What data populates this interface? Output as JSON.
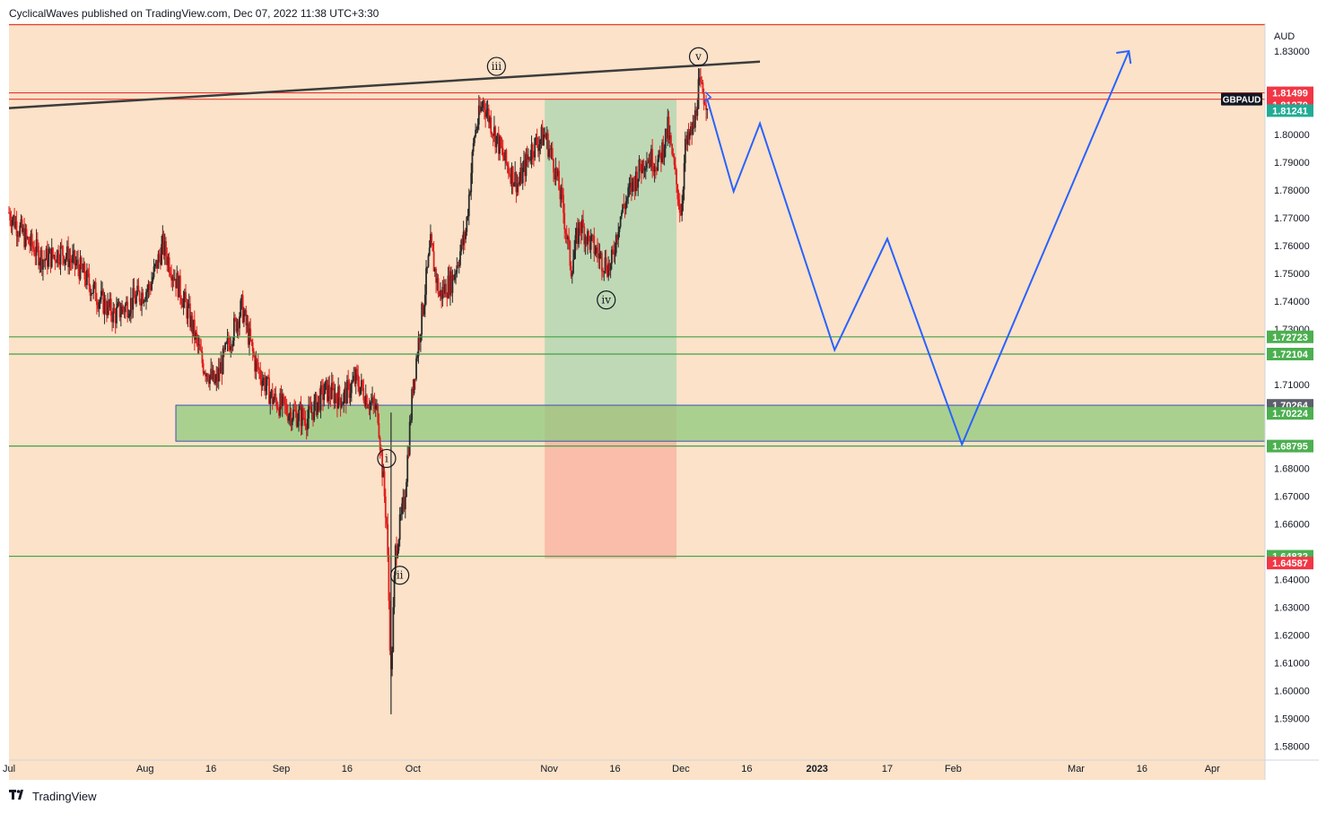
{
  "header": {
    "published": "CyclicalWaves published on TradingView.com, Dec 07, 2022 11:38 UTC+3:30"
  },
  "footer": {
    "logo_icon": "tradingview-logo-icon",
    "brand": "TradingView"
  },
  "colors": {
    "background": "#fbe2c8",
    "candle_up": "#2b2b2b",
    "candle_down": "#e01e1e",
    "red_line": "#e53935",
    "green_line": "#43a047",
    "forecast": "#2962ff",
    "trendline": "#3c3c3c",
    "zone_fill": "#8fca7e",
    "box_green": "#b8d8b4",
    "box_red": "#f8b9a5",
    "label_red": "#f23645",
    "label_green": "#22ab94",
    "label_bright_green": "#4caf50",
    "label_gray": "#5d606b",
    "label_black": "#131722"
  },
  "chart_data": {
    "type": "candlestick",
    "symbol": "GBPAUD",
    "currency": "AUD",
    "ylim": [
      1.575,
      1.84
    ],
    "y_ticks": [
      "1.83000",
      "1.80000",
      "1.79000",
      "1.78000",
      "1.77000",
      "1.76000",
      "1.75000",
      "1.74000",
      "1.73000",
      "1.71000",
      "1.68000",
      "1.67000",
      "1.66000",
      "1.64000",
      "1.63000",
      "1.62000",
      "1.61000",
      "1.60000",
      "1.59000",
      "1.58000"
    ],
    "x_ticks": [
      {
        "label": "Jul",
        "date": "2022-07-01"
      },
      {
        "label": "Aug",
        "date": "2022-08-01"
      },
      {
        "label": "16",
        "date": "2022-08-16"
      },
      {
        "label": "Sep",
        "date": "2022-09-01"
      },
      {
        "label": "16",
        "date": "2022-09-16"
      },
      {
        "label": "Oct",
        "date": "2022-10-01"
      },
      {
        "label": "Nov",
        "date": "2022-11-01"
      },
      {
        "label": "16",
        "date": "2022-11-16"
      },
      {
        "label": "Dec",
        "date": "2022-12-01"
      },
      {
        "label": "16",
        "date": "2022-12-16"
      },
      {
        "label": "2023",
        "date": "2023-01-01"
      },
      {
        "label": "17",
        "date": "2023-01-17"
      },
      {
        "label": "Feb",
        "date": "2023-02-01"
      },
      {
        "label": "Mar",
        "date": "2023-03-01"
      },
      {
        "label": "16",
        "date": "2023-03-16"
      },
      {
        "label": "Apr",
        "date": "2023-04-01"
      }
    ],
    "price_path": [
      [
        "2022-07-01",
        1.772
      ],
      [
        "2022-07-05",
        1.762
      ],
      [
        "2022-07-09",
        1.755
      ],
      [
        "2022-07-13",
        1.758
      ],
      [
        "2022-07-17",
        1.752
      ],
      [
        "2022-07-21",
        1.742
      ],
      [
        "2022-07-25",
        1.735
      ],
      [
        "2022-07-29",
        1.74
      ],
      [
        "2022-08-02",
        1.745
      ],
      [
        "2022-08-05",
        1.76
      ],
      [
        "2022-08-08",
        1.748
      ],
      [
        "2022-08-11",
        1.735
      ],
      [
        "2022-08-14",
        1.718
      ],
      [
        "2022-08-17",
        1.71
      ],
      [
        "2022-08-20",
        1.725
      ],
      [
        "2022-08-23",
        1.738
      ],
      [
        "2022-08-26",
        1.718
      ],
      [
        "2022-08-30",
        1.705
      ],
      [
        "2022-09-03",
        1.7
      ],
      [
        "2022-09-07",
        1.698
      ],
      [
        "2022-09-11",
        1.708
      ],
      [
        "2022-09-15",
        1.705
      ],
      [
        "2022-09-18",
        1.712
      ],
      [
        "2022-09-21",
        1.704
      ],
      [
        "2022-09-23",
        1.7
      ],
      [
        "2022-09-25",
        1.66
      ],
      [
        "2022-09-26",
        1.605
      ],
      [
        "2022-09-27",
        1.65
      ],
      [
        "2022-09-29",
        1.668
      ],
      [
        "2022-10-01",
        1.71
      ],
      [
        "2022-10-03",
        1.735
      ],
      [
        "2022-10-05",
        1.76
      ],
      [
        "2022-10-07",
        1.742
      ],
      [
        "2022-10-10",
        1.748
      ],
      [
        "2022-10-13",
        1.765
      ],
      [
        "2022-10-15",
        1.8
      ],
      [
        "2022-10-17",
        1.812
      ],
      [
        "2022-10-19",
        1.803
      ],
      [
        "2022-10-22",
        1.79
      ],
      [
        "2022-10-25",
        1.782
      ],
      [
        "2022-10-28",
        1.795
      ],
      [
        "2022-10-31",
        1.8
      ],
      [
        "2022-11-02",
        1.79
      ],
      [
        "2022-11-04",
        1.775
      ],
      [
        "2022-11-06",
        1.752
      ],
      [
        "2022-11-08",
        1.768
      ],
      [
        "2022-11-10",
        1.762
      ],
      [
        "2022-11-13",
        1.755
      ],
      [
        "2022-11-15",
        1.752
      ],
      [
        "2022-11-17",
        1.77
      ],
      [
        "2022-11-20",
        1.782
      ],
      [
        "2022-11-23",
        1.792
      ],
      [
        "2022-11-26",
        1.79
      ],
      [
        "2022-11-28",
        1.802
      ],
      [
        "2022-11-30",
        1.782
      ],
      [
        "2022-12-01",
        1.772
      ],
      [
        "2022-12-02",
        1.795
      ],
      [
        "2022-12-04",
        1.803
      ],
      [
        "2022-12-05",
        1.817
      ],
      [
        "2022-12-07",
        1.8124
      ]
    ],
    "current_price": 1.81241,
    "key_levels": [
      {
        "price": 1.81499,
        "label": "1.81499",
        "style": "red"
      },
      {
        "price": 1.8127,
        "label": "1.81270",
        "style": "red"
      },
      {
        "price": 1.72723,
        "label": "1.72723",
        "style": "green"
      },
      {
        "price": 1.72104,
        "label": "1.72104",
        "style": "green"
      },
      {
        "price": 1.70264,
        "label": "1.70264",
        "style": "gray"
      },
      {
        "price": 1.70224,
        "label": "1.70224",
        "style": "green"
      },
      {
        "price": 1.68795,
        "label": "1.68795",
        "style": "green"
      },
      {
        "price": 1.64832,
        "label": "1.64832",
        "style": "green"
      },
      {
        "price": 1.64587,
        "label": "1.64587",
        "style": "red"
      }
    ],
    "price_labels": {
      "current": "1.81241",
      "symbol_tag": "GBPAUD"
    },
    "top_red_line": 1.8395,
    "demand_zone": {
      "from": "2022-08-08",
      "to": "2023-04-30",
      "top": 1.70264,
      "bottom": 1.6897
    },
    "position_box": {
      "from": "2022-10-31",
      "to": "2022-11-30",
      "top": 1.8127,
      "entry": 1.70264,
      "bottom": 1.6475
    },
    "trendline": {
      "start": [
        "2022-07-01",
        1.8095
      ],
      "end": [
        "2022-12-19",
        1.8262
      ]
    },
    "forecast_path": [
      [
        "2022-12-07",
        1.8127
      ],
      [
        "2022-12-13",
        1.7795
      ],
      [
        "2022-12-19",
        1.804
      ],
      [
        "2023-01-05",
        1.7225
      ],
      [
        "2023-01-17",
        1.7625
      ],
      [
        "2023-02-03",
        1.6885
      ],
      [
        "2023-03-13",
        1.83
      ]
    ],
    "wave_labels": [
      {
        "text": "i",
        "date": "2022-09-25",
        "price": 1.6835
      },
      {
        "text": "ii",
        "date": "2022-09-28",
        "price": 1.6415
      },
      {
        "text": "iii",
        "date": "2022-10-20",
        "price": 1.8245
      },
      {
        "text": "iv",
        "date": "2022-11-14",
        "price": 1.7405
      },
      {
        "text": "v",
        "date": "2022-12-05",
        "price": 1.828
      }
    ]
  }
}
